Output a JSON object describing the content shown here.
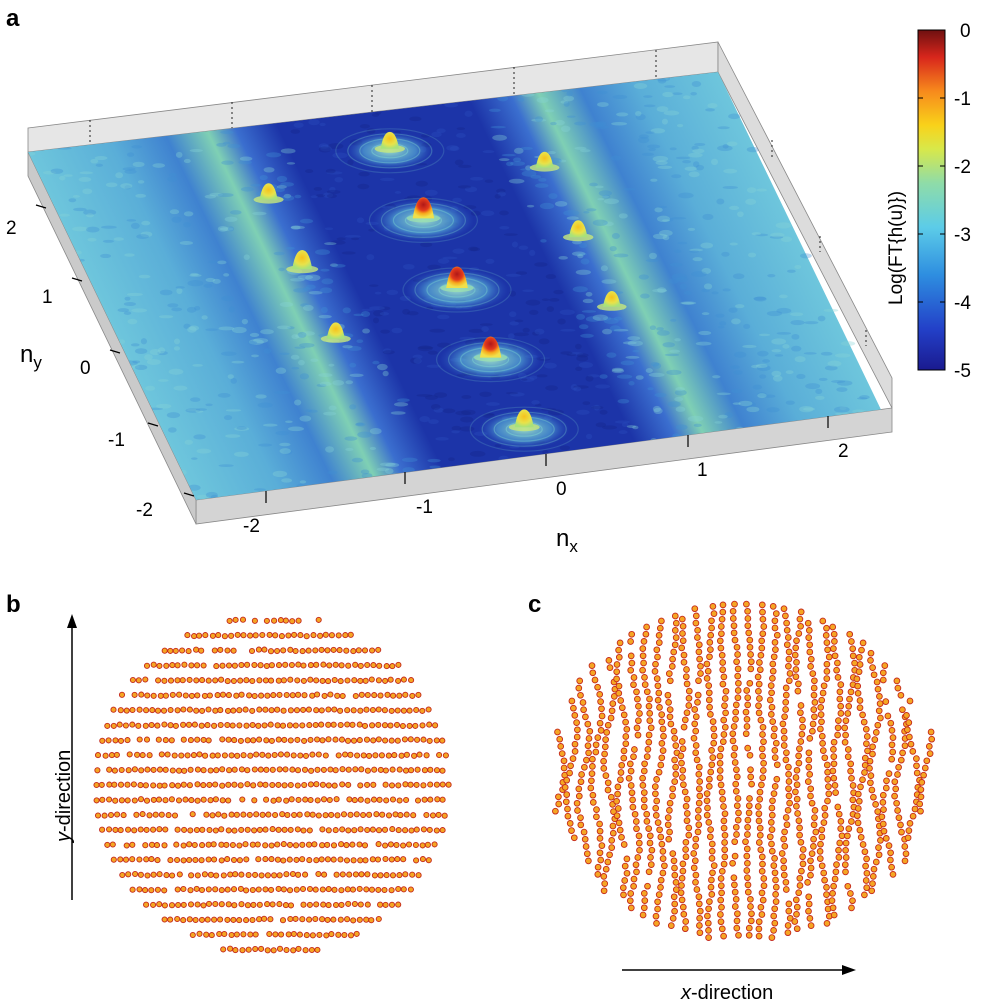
{
  "panels": {
    "a": "a",
    "b": "b",
    "c": "c"
  },
  "chart_data": [
    {
      "panel": "a",
      "type": "heatmap",
      "style": "3d-surface",
      "xlabel": "n",
      "xlabel_sub": "x",
      "ylabel": "n",
      "ylabel_sub": "y",
      "xlim": [
        -2.5,
        2.5
      ],
      "ylim": [
        -2.5,
        2.5
      ],
      "xticks": [
        "-2",
        "-1",
        "0",
        "1",
        "2"
      ],
      "yticks": [
        "2",
        "1",
        "0",
        "-1",
        "-2"
      ],
      "colorbar": {
        "label": "Log(FT{h(u)})",
        "range": [
          -5,
          0
        ],
        "ticks": [
          "0",
          "-1",
          "-2",
          "-3",
          "-4",
          "-5"
        ],
        "colormap": "jet"
      },
      "peaks": [
        {
          "nx": 0,
          "ny": 2,
          "value": -1.8
        },
        {
          "nx": 0,
          "ny": 1,
          "value": -0.3
        },
        {
          "nx": 0,
          "ny": 0,
          "value": -0.2
        },
        {
          "nx": 0,
          "ny": -1,
          "value": -0.3
        },
        {
          "nx": 0,
          "ny": -2,
          "value": -1.5
        },
        {
          "nx": -1,
          "ny": 1.5,
          "value": -2.0
        },
        {
          "nx": -1,
          "ny": 0.5,
          "value": -1.0
        },
        {
          "nx": -1,
          "ny": -0.5,
          "value": -2.0
        },
        {
          "nx": 1,
          "ny": 1.5,
          "value": -2.2
        },
        {
          "nx": 1,
          "ny": 0.5,
          "value": -1.8
        },
        {
          "nx": 1,
          "ny": -0.5,
          "value": -2.2
        }
      ]
    },
    {
      "panel": "b",
      "type": "scatter",
      "label": "y-direction",
      "label_italic": "y",
      "label_rest": "-direction",
      "marker_color": "#f5a623",
      "marker_edge": "#c4281c",
      "pattern": "horizontal rows of particles inside a circular cross-section",
      "rows": 23
    },
    {
      "panel": "c",
      "type": "scatter",
      "label": "x-direction",
      "label_italic": "x",
      "label_rest": "-direction",
      "marker_color": "#f5a623",
      "marker_edge": "#c4281c",
      "pattern": "vertical wavy columns of particles inside a circular cross-section",
      "columns": 30
    }
  ]
}
